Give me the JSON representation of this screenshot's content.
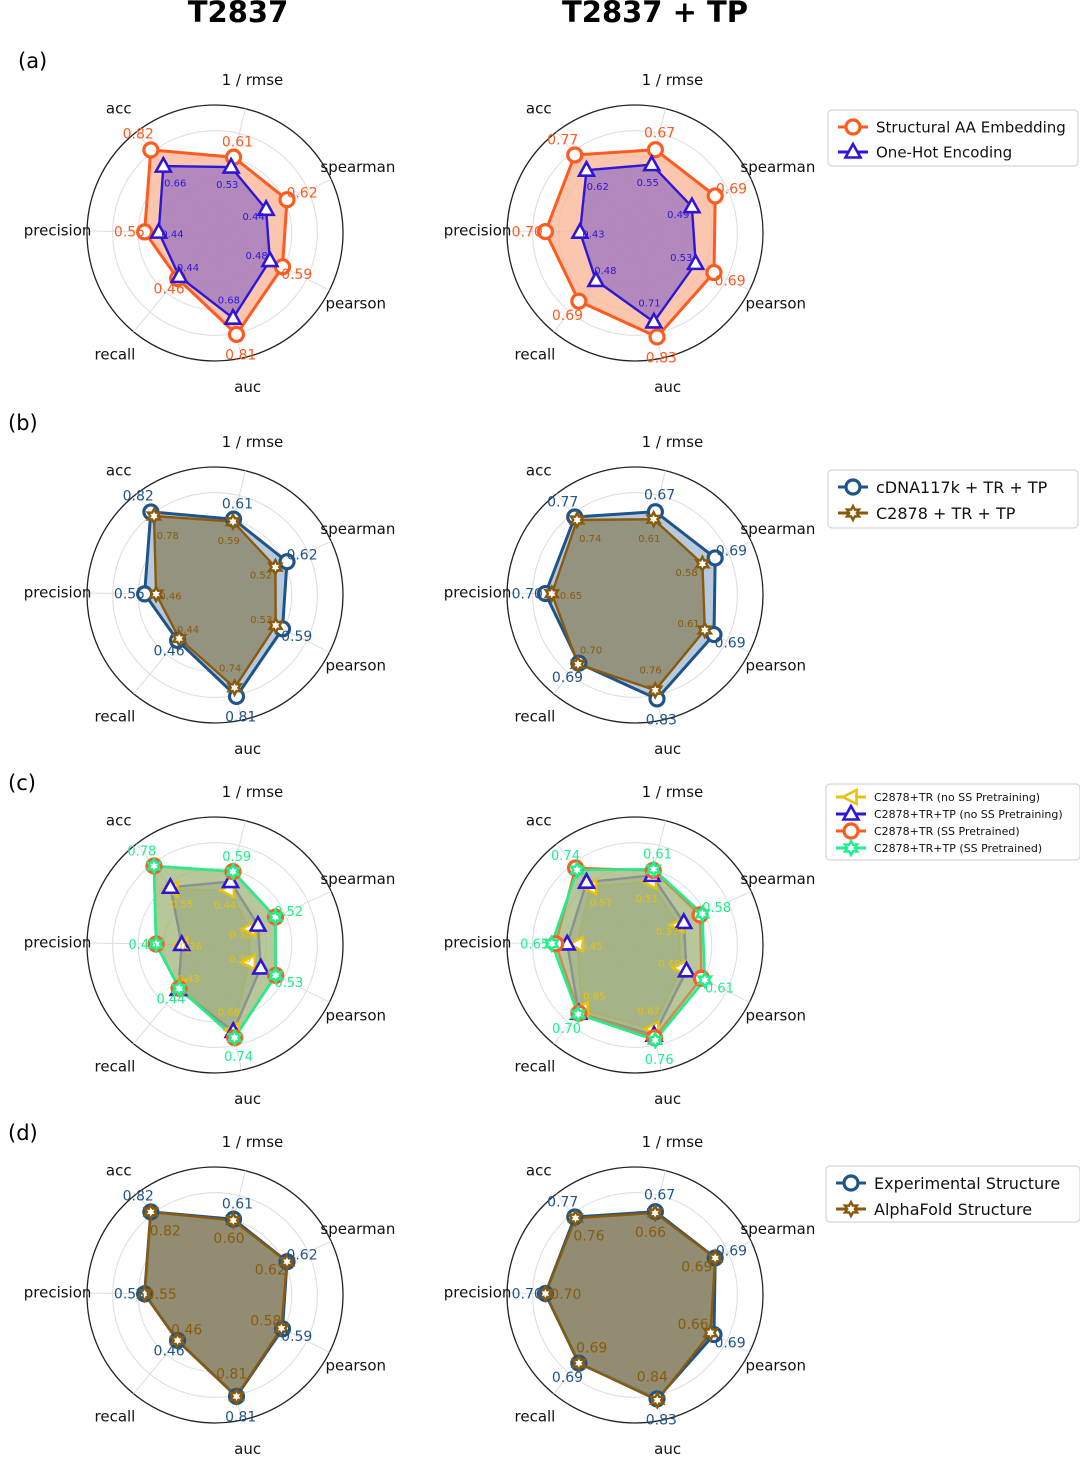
{
  "column_titles": [
    "T2837",
    "T2837 + TP"
  ],
  "row_labels": [
    "(a)",
    "(b)",
    "(c)",
    "(d)"
  ],
  "axes": [
    "1 / rmse",
    "spearman",
    "pearson",
    "auc",
    "recall",
    "precision",
    "acc"
  ],
  "chart_data": [
    {
      "type": "radar",
      "row": "(a)",
      "title": "T2837",
      "axes": [
        "1 / rmse",
        "spearman",
        "pearson",
        "auc",
        "recall",
        "precision",
        "acc"
      ],
      "series": [
        {
          "name": "Structural AA Embedding",
          "values": [
            0.61,
            0.62,
            0.59,
            0.81,
            0.46,
            0.55,
            0.82
          ]
        },
        {
          "name": "One-Hot Encoding",
          "values": [
            0.53,
            0.44,
            0.48,
            0.68,
            0.44,
            0.44,
            0.66
          ]
        }
      ]
    },
    {
      "type": "radar",
      "row": "(a)",
      "title": "T2837 + TP",
      "axes": [
        "1 / rmse",
        "spearman",
        "pearson",
        "auc",
        "recall",
        "precision",
        "acc"
      ],
      "series": [
        {
          "name": "Structural AA Embedding",
          "values": [
            0.67,
            0.69,
            0.69,
            0.83,
            0.69,
            0.7,
            0.77
          ]
        },
        {
          "name": "One-Hot Encoding",
          "values": [
            0.55,
            0.49,
            0.53,
            0.71,
            0.48,
            0.43,
            0.62
          ]
        }
      ]
    },
    {
      "type": "radar",
      "row": "(b)",
      "title": "T2837",
      "axes": [
        "1 / rmse",
        "spearman",
        "pearson",
        "auc",
        "recall",
        "precision",
        "acc"
      ],
      "series": [
        {
          "name": "cDNA117k + TR + TP",
          "values": [
            0.61,
            0.62,
            0.59,
            0.81,
            0.46,
            0.55,
            0.82
          ]
        },
        {
          "name": "C2878 + TR + TP",
          "values": [
            0.59,
            0.52,
            0.53,
            0.74,
            0.44,
            0.46,
            0.78
          ]
        }
      ]
    },
    {
      "type": "radar",
      "row": "(b)",
      "title": "T2837 + TP",
      "axes": [
        "1 / rmse",
        "spearman",
        "pearson",
        "auc",
        "recall",
        "precision",
        "acc"
      ],
      "series": [
        {
          "name": "cDNA117k + TR + TP",
          "values": [
            0.67,
            0.69,
            0.69,
            0.83,
            0.69,
            0.7,
            0.77
          ]
        },
        {
          "name": "C2878 + TR + TP",
          "values": [
            0.61,
            0.58,
            0.61,
            0.76,
            0.7,
            0.65,
            0.74
          ]
        }
      ]
    },
    {
      "type": "radar",
      "row": "(c)",
      "title": "T2837",
      "axes": [
        "1 / rmse",
        "spearman",
        "pearson",
        "auc",
        "recall",
        "precision",
        "acc"
      ],
      "series": [
        {
          "name": "C2878+TR (no SS Pretraining)",
          "values": [
            0.44,
            0.3,
            0.3,
            0.68,
            0.43,
            0.26,
            0.55
          ]
        },
        {
          "name": "C2878+TR+TP (no SS Pretraining)",
          "values": [
            0.51,
            0.37,
            0.4,
            0.69,
            0.45,
            0.26,
            0.57
          ]
        },
        {
          "name": "C2878+TR (SS Pretrained)",
          "values": [
            0.59,
            0.52,
            0.53,
            0.74,
            0.44,
            0.46,
            0.78
          ]
        },
        {
          "name": "C2878+TR+TP (SS Pretrained)",
          "values": [
            0.59,
            0.52,
            0.53,
            0.74,
            0.44,
            0.46,
            0.78
          ]
        }
      ],
      "shown_labels": {
        "C2878+TR (no SS Pretraining)": [
          "0.44",
          "0.30",
          "0.30",
          "0.68",
          "0.43",
          "0.26",
          "0.55"
        ],
        "C2878+TR+TP (SS Pretrained)": [
          "0.59",
          "0.52",
          "0.53",
          "0.74",
          "0.44",
          "0.46",
          "0.78"
        ]
      }
    },
    {
      "type": "radar",
      "row": "(c)",
      "title": "T2837 + TP",
      "axes": [
        "1 / rmse",
        "spearman",
        "pearson",
        "auc",
        "recall",
        "precision",
        "acc"
      ],
      "series": [
        {
          "name": "C2878+TR (no SS Pretraining)",
          "values": [
            0.51,
            0.37,
            0.4,
            0.67,
            0.65,
            0.45,
            0.57
          ]
        },
        {
          "name": "C2878+TR+TP (no SS Pretraining)",
          "values": [
            0.56,
            0.42,
            0.45,
            0.72,
            0.69,
            0.53,
            0.62
          ]
        },
        {
          "name": "C2878+TR (SS Pretrained)",
          "values": [
            0.6,
            0.56,
            0.58,
            0.74,
            0.69,
            0.62,
            0.76
          ]
        },
        {
          "name": "C2878+TR+TP (SS Pretrained)",
          "values": [
            0.61,
            0.58,
            0.61,
            0.76,
            0.7,
            0.65,
            0.74
          ]
        }
      ],
      "shown_labels": {
        "C2878+TR (no SS Pretraining)": [
          "0.51",
          "0.37",
          "0.40",
          "0.67",
          "0.65",
          "0.45",
          "0.57"
        ],
        "C2878+TR+TP (SS Pretrained)": [
          "0.61",
          "0.58",
          "0.61",
          "0.76",
          "0.70",
          "0.65",
          "0.74"
        ]
      }
    },
    {
      "type": "radar",
      "row": "(d)",
      "title": "T2837",
      "axes": [
        "1 / rmse",
        "spearman",
        "pearson",
        "auc",
        "recall",
        "precision",
        "acc"
      ],
      "series": [
        {
          "name": "Experimental Structure",
          "values": [
            0.61,
            0.62,
            0.59,
            0.81,
            0.46,
            0.55,
            0.82
          ]
        },
        {
          "name": "AlphaFold Structure",
          "values": [
            0.6,
            0.62,
            0.58,
            0.81,
            0.46,
            0.55,
            0.82
          ]
        }
      ]
    },
    {
      "type": "radar",
      "row": "(d)",
      "title": "T2837 + TP",
      "axes": [
        "1 / rmse",
        "spearman",
        "pearson",
        "auc",
        "recall",
        "precision",
        "acc"
      ],
      "series": [
        {
          "name": "Experimental Structure",
          "values": [
            0.67,
            0.69,
            0.69,
            0.83,
            0.69,
            0.7,
            0.77
          ]
        },
        {
          "name": "AlphaFold Structure",
          "values": [
            0.66,
            0.69,
            0.66,
            0.84,
            0.69,
            0.7,
            0.76
          ]
        }
      ]
    }
  ],
  "legends": {
    "(a)": [
      "Structural AA Embedding",
      "One-Hot Encoding"
    ],
    "(b)": [
      "cDNA117k + TR + TP",
      "C2878 + TR + TP"
    ],
    "(c)": [
      "C2878+TR (no SS Pretraining)",
      "C2878+TR+TP (no SS Pretraining)",
      "C2878+TR (SS Pretrained)",
      "C2878+TR+TP (SS Pretrained)"
    ],
    "(d)": [
      "Experimental Structure",
      "AlphaFold Structure"
    ]
  },
  "colors": {
    "orange": "#ff5a1f",
    "blue": "#2f16d6",
    "navy": "#1f5488",
    "brown": "#8a5a0b",
    "yellow": "#e8c20a",
    "green": "#1fef8c",
    "fill_orange": "#f9b89a",
    "fill_purple": "#9b74c2",
    "fill_steel": "#b7c9dc",
    "fill_grey": "#8e8a6e",
    "fill_olive": "#a3b77c"
  }
}
